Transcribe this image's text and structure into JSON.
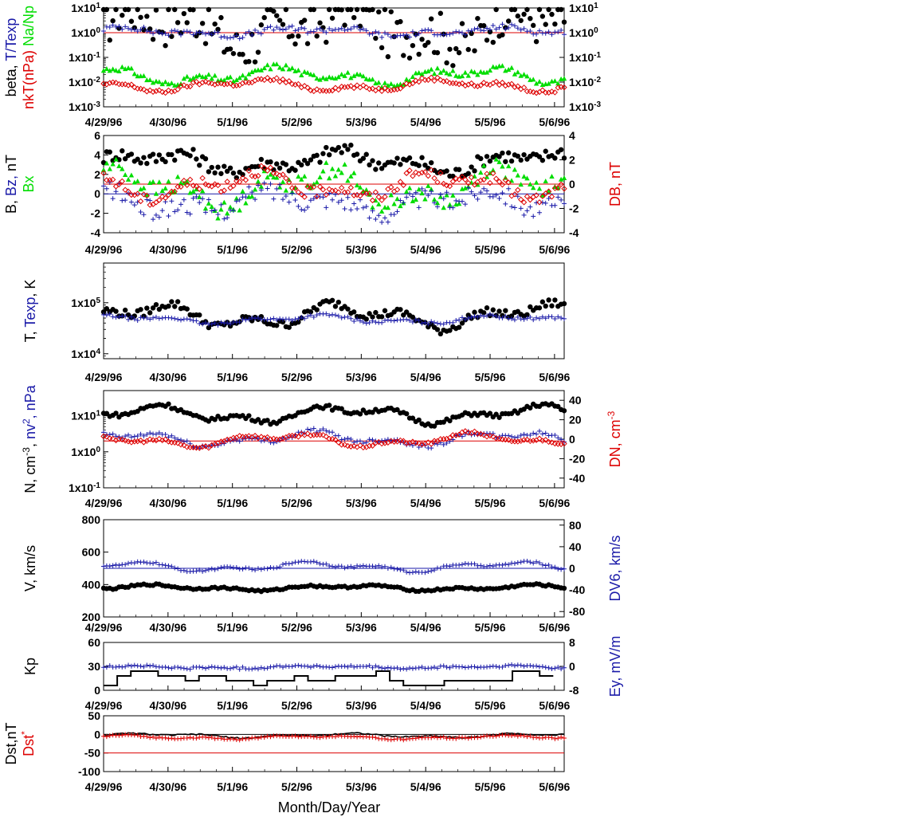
{
  "x_axis": {
    "ticks": [
      "4/29/96",
      "4/30/96",
      "5/1/96",
      "5/2/96",
      "5/3/96",
      "5/4/96",
      "5/5/96",
      "5/6/96"
    ],
    "label": "Month/Day/Year",
    "range_days": [
      0,
      7.15
    ]
  },
  "colors": {
    "black": "#000000",
    "blue": "#1a1aa8",
    "red": "#dd0000",
    "green": "#00dd00"
  },
  "chart_data": [
    {
      "id": "beta",
      "type": "scatter",
      "left_label": [
        {
          "text": "beta, ",
          "color": "#000000"
        },
        {
          "text": "T/Texp",
          "color": "#1a1aa8"
        }
      ],
      "left_label2": [
        {
          "text": "nkT(nPa)",
          "color": "#dd0000"
        },
        {
          "text": " ",
          "color": "#000000"
        },
        {
          "text": "Na/Np",
          "color": "#00dd00"
        }
      ],
      "y_scale": "log",
      "ylim": [
        0.001,
        10
      ],
      "y_ticks": [
        "1x10-3",
        "1x10-2",
        "1x10-1",
        "1x100",
        "1x101"
      ],
      "right_ticks": [
        "1x10-3",
        "1x10-2",
        "1x10-1",
        "1x100",
        "1x101"
      ],
      "ref_lines": [
        {
          "y": 1,
          "color": "#dd0000"
        }
      ],
      "series": [
        {
          "marker": "dot",
          "color": "#000000",
          "base": 1.8,
          "amp": 1.2,
          "scatter": 1.0,
          "log": true
        },
        {
          "marker": "plus",
          "color": "#1a1aa8",
          "base": 1.1,
          "amp": 0.25,
          "scatter": 0.12,
          "log": true
        },
        {
          "marker": "tri",
          "color": "#00dd00",
          "base": 0.018,
          "amp": 0.5,
          "scatter": 0.12,
          "log": true
        },
        {
          "marker": "diamond",
          "color": "#dd0000",
          "base": 0.0075,
          "amp": 0.35,
          "scatter": 0.08,
          "log": true
        }
      ]
    },
    {
      "id": "magnetic",
      "type": "scatter",
      "left_label": [
        {
          "text": "B, ",
          "color": "#000000"
        },
        {
          "text": "Bz, ",
          "color": "#1a1aa8"
        },
        {
          "text": "nT",
          "color": "#000000"
        }
      ],
      "left_label2": [
        {
          "text": "Bx",
          "color": "#00dd00"
        }
      ],
      "right_label": [
        {
          "text": "DB, nT",
          "color": "#dd0000"
        }
      ],
      "y_scale": "linear",
      "ylim": [
        -4,
        6
      ],
      "y_ticks": [
        "6",
        "4",
        "2",
        "0",
        "-2",
        "-4"
      ],
      "right_ticks": [
        "4",
        "2",
        "0",
        "-2",
        "-4"
      ],
      "right_range": [
        -4,
        4
      ],
      "ref_lines": [
        {
          "y": 0,
          "color": "#1a1aa8"
        },
        {
          "y": 1,
          "color": "#dd0000"
        }
      ],
      "series": [
        {
          "marker": "dot",
          "color": "#000000",
          "base": 3.3,
          "amp": 1.3,
          "scatter": 0.7
        },
        {
          "marker": "tri",
          "color": "#00dd00",
          "base": 0.6,
          "amp": 2.4,
          "scatter": 0.9
        },
        {
          "marker": "plus",
          "color": "#1a1aa8",
          "base": -0.8,
          "amp": 1.4,
          "scatter": 1.0
        },
        {
          "marker": "diamond",
          "color": "#dd0000",
          "base": 0.9,
          "amp": 1.6,
          "scatter": 0.6
        }
      ]
    },
    {
      "id": "temperature",
      "type": "scatter",
      "left_label": [
        {
          "text": "T, ",
          "color": "#000000"
        },
        {
          "text": "Texp",
          "color": "#1a1aa8"
        },
        {
          "text": ", K",
          "color": "#000000"
        }
      ],
      "y_scale": "log",
      "ylim": [
        8000,
        600000
      ],
      "y_ticks": [
        "1x104",
        "1x105"
      ],
      "series": [
        {
          "marker": "dot",
          "color": "#000000",
          "base": 55000,
          "amp": 0.35,
          "scatter": 0.08,
          "log": true
        },
        {
          "marker": "plus",
          "color": "#1a1aa8",
          "base": 47000,
          "amp": 0.12,
          "scatter": 0.03,
          "log": true
        }
      ]
    },
    {
      "id": "density",
      "type": "scatter",
      "left_label": [
        {
          "text": "N, cm",
          "color": "#000000"
        },
        {
          "text": "-3",
          "color": "#000000",
          "sup": true
        },
        {
          "text": ", ",
          "color": "#000000"
        },
        {
          "text": "nv",
          "color": "#1a1aa8"
        },
        {
          "text": "2",
          "color": "#1a1aa8",
          "sup": true
        },
        {
          "text": ", nPa",
          "color": "#1a1aa8"
        }
      ],
      "right_label": [
        {
          "text": "DN, cm",
          "color": "#dd0000"
        },
        {
          "text": "-3",
          "color": "#dd0000",
          "sup": true
        }
      ],
      "y_scale": "log",
      "ylim": [
        0.1,
        50
      ],
      "y_ticks": [
        "1x10-1",
        "1x100",
        "1x101"
      ],
      "right_ticks": [
        "40",
        "20",
        "0",
        "-20",
        "-40"
      ],
      "right_range": [
        -50,
        50
      ],
      "ref_lines": [
        {
          "y": 2.0,
          "color": "#dd0000"
        }
      ],
      "series": [
        {
          "marker": "dot",
          "color": "#000000",
          "base": 11,
          "amp": 0.35,
          "scatter": 0.06,
          "log": true
        },
        {
          "marker": "plus",
          "color": "#1a1aa8",
          "base": 2.3,
          "amp": 0.3,
          "scatter": 0.06,
          "log": true
        },
        {
          "marker": "diamond",
          "color": "#dd0000",
          "base": 2.1,
          "amp": 0.28,
          "scatter": 0.04,
          "log": true
        }
      ]
    },
    {
      "id": "velocity",
      "type": "scatter",
      "left_label": [
        {
          "text": "V, km/s",
          "color": "#000000"
        }
      ],
      "right_label": [
        {
          "text": "DV6, km/s",
          "color": "#1a1aa8"
        }
      ],
      "y_scale": "linear",
      "ylim": [
        200,
        800
      ],
      "y_ticks": [
        "800",
        "600",
        "400",
        "200"
      ],
      "right_ticks": [
        "80",
        "40",
        "0",
        "-40",
        "-80"
      ],
      "right_range": [
        -90,
        90
      ],
      "ref_lines": [
        {
          "y": 500,
          "color": "#1a1aa8"
        }
      ],
      "series": [
        {
          "marker": "dot",
          "color": "#000000",
          "base": 380,
          "amp": 20,
          "scatter": 6
        },
        {
          "marker": "plus",
          "color": "#1a1aa8",
          "base": 510,
          "amp": 35,
          "scatter": 6
        }
      ]
    },
    {
      "id": "kp",
      "type": "line",
      "left_label": [
        {
          "text": "Kp",
          "color": "#000000"
        }
      ],
      "right_label": [
        {
          "text": "Ey,  mV/m",
          "color": "#1a1aa8"
        }
      ],
      "y_scale": "linear",
      "ylim": [
        0,
        60
      ],
      "y_ticks": [
        "60",
        "30",
        "0"
      ],
      "right_ticks": [
        "8",
        "0",
        "-8"
      ],
      "right_range": [
        -8,
        8
      ],
      "series": [
        {
          "marker": "step",
          "color": "#000000",
          "base": 14,
          "amp": 9,
          "scatter": 4
        },
        {
          "marker": "plus",
          "color": "#1a1aa8",
          "base": 29,
          "amp": 2,
          "scatter": 1.5
        }
      ]
    },
    {
      "id": "dst",
      "type": "line",
      "left_label": [
        {
          "text": "Dst,nT",
          "color": "#000000"
        }
      ],
      "left_label2": [
        {
          "text": "Dst",
          "color": "#dd0000"
        },
        {
          "text": "*",
          "color": "#dd0000",
          "sup": true
        }
      ],
      "y_scale": "linear",
      "ylim": [
        -100,
        50
      ],
      "y_ticks": [
        "50",
        "0",
        "-50",
        "-100"
      ],
      "ref_lines": [
        {
          "y": 0,
          "color": "#000000"
        },
        {
          "y": -50,
          "color": "#dd0000"
        }
      ],
      "series": [
        {
          "marker": "line",
          "color": "#000000",
          "base": -3,
          "amp": 7,
          "scatter": 2
        },
        {
          "marker": "plus",
          "color": "#dd0000",
          "base": -8,
          "amp": 6,
          "scatter": 2
        }
      ]
    }
  ]
}
